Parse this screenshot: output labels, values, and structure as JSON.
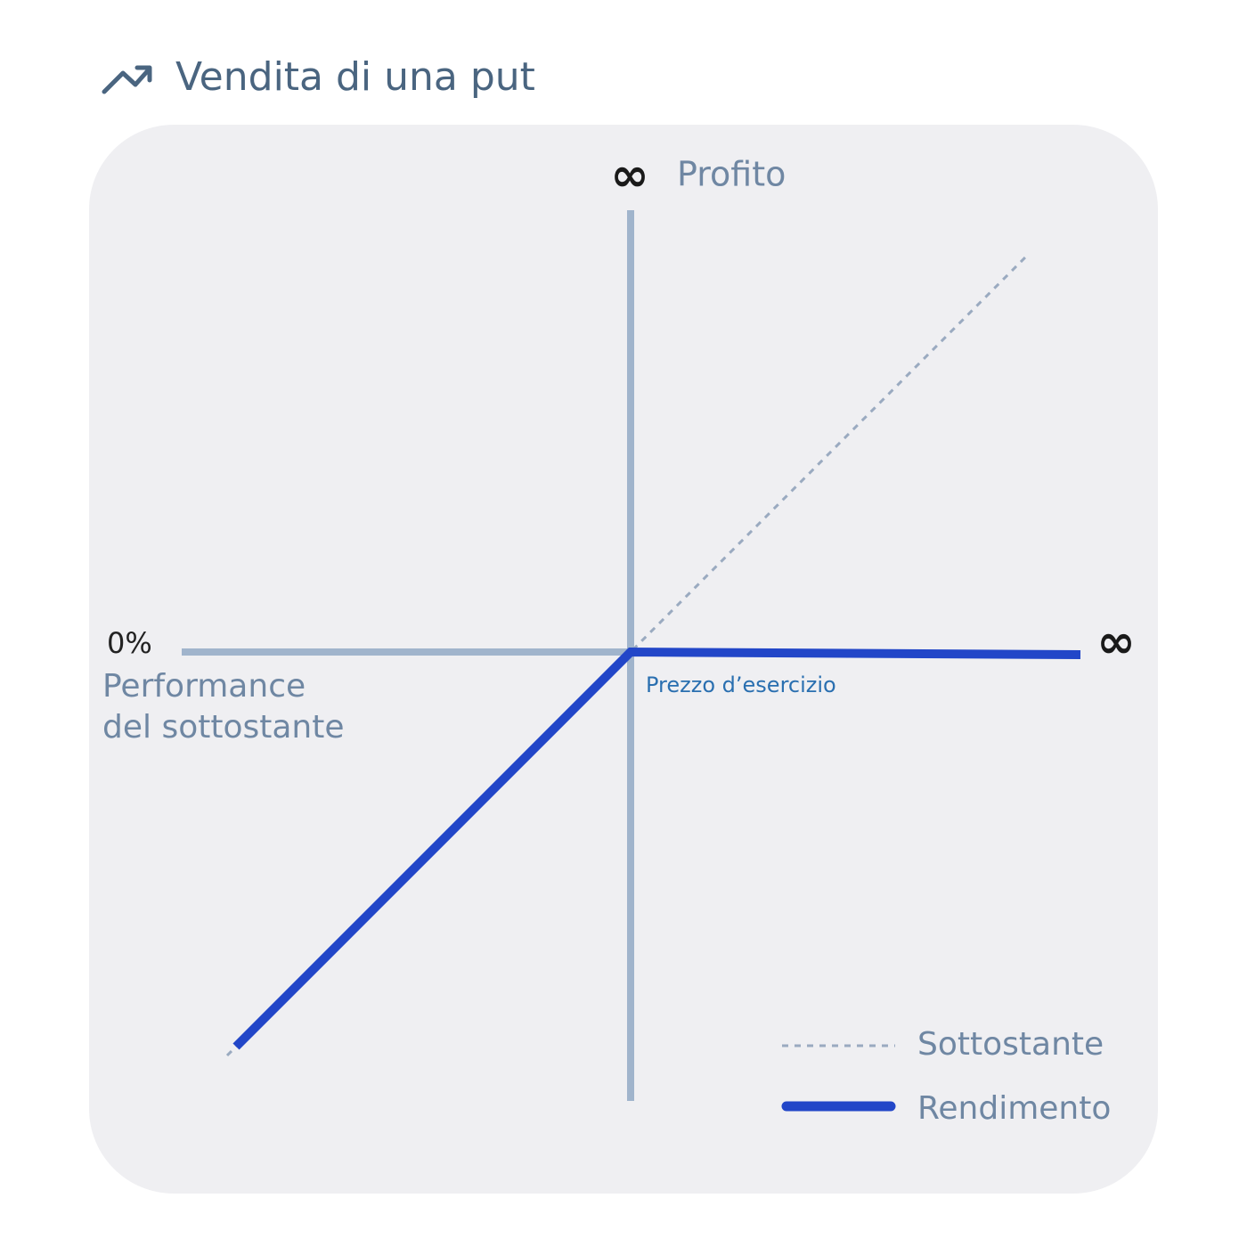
{
  "header": {
    "title": "Vendita di una put"
  },
  "diagram": {
    "y_axis": {
      "symbol": "∞",
      "label": "Profito"
    },
    "x_axis": {
      "start_label": "0%",
      "label_lines": [
        "Performance",
        "del sottostante"
      ],
      "end_symbol": "∞"
    },
    "strike_label": "Prezzo d’esercizio",
    "legend": [
      "Sottostante",
      "Rendimento"
    ]
  }
}
